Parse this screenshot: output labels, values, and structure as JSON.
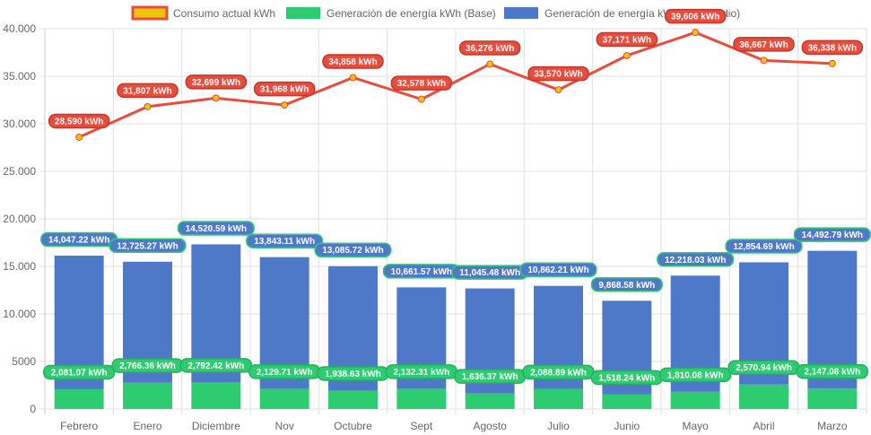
{
  "chart_data": {
    "type": "bar",
    "title": "",
    "xlabel": "",
    "ylabel": "",
    "ylim": [
      0,
      40000
    ],
    "yticks": [
      "0",
      "5000",
      "10.000",
      "15.000",
      "20.000",
      "25.000",
      "30.000",
      "35.000",
      "40.000"
    ],
    "ytick_values": [
      0,
      5000,
      10000,
      15000,
      20000,
      25000,
      30000,
      35000,
      40000
    ],
    "grid": true,
    "legend_position": "top",
    "categories": [
      "Febrero",
      "Enero",
      "Diciembre",
      "Nov",
      "Octubre",
      "Sept",
      "Agosto",
      "Julio",
      "Junio",
      "Mayo",
      "Abril",
      "Marzo"
    ],
    "series": [
      {
        "name": "Consumo actual kWh",
        "kind": "line",
        "color": "#e74c3c",
        "point_color": "#f1c40f",
        "values": [
          28590,
          31807,
          32699,
          31968,
          34858,
          32578,
          36276,
          33570,
          37171,
          39606,
          36667,
          36338
        ],
        "labels": [
          "28,590 kWh",
          "31,807 kWh",
          "32,699 kWh",
          "31,968 kWh",
          "34,858 kWh",
          "32,578 kWh",
          "36,276 kWh",
          "33,570 kWh",
          "37,171 kWh",
          "39,606 kWh",
          "36,667 kWh",
          "36,338 kWh"
        ]
      },
      {
        "name": "Generación de energía kWh (Base)",
        "kind": "bar",
        "stack": "gen",
        "color": "#2ecc71",
        "values": [
          2081.07,
          2766.36,
          2792.42,
          2129.71,
          1938.63,
          2132.31,
          1636.37,
          2088.89,
          1518.24,
          1810.08,
          2570.94,
          2147.08
        ],
        "labels": [
          "2,081.07 kWh",
          "2,766.36 kWh",
          "2,792.42 kWh",
          "2,129.71 kWh",
          "1,938.63 kWh",
          "2,132.31 kWh",
          "1,636.37 kWh",
          "2,088.89 kWh",
          "1,518.24 kWh",
          "1,810.08 kWh",
          "2,570.94 kWh",
          "2,147.08 kWh"
        ]
      },
      {
        "name": "Generación de energía kWh (Intermedio)",
        "kind": "bar",
        "stack": "gen",
        "color": "#4e79c9",
        "values": [
          14047.22,
          12725.27,
          14520.59,
          13843.11,
          13085.72,
          10661.57,
          11045.48,
          10862.21,
          9868.58,
          12218.03,
          12854.69,
          14492.79
        ],
        "labels": [
          "14,047.22 kWh",
          "12,725.27 kWh",
          "14,520.59 kWh",
          "13,843.11 kWh",
          "13,085.72 kWh",
          "10,661.57 kWh",
          "11,045.48 kWh",
          "10,862.21 kWh",
          "9,868.58 kWh",
          "12,218.03 kWh",
          "12,854.69 kWh",
          "14,492.79 kWh"
        ]
      }
    ]
  }
}
